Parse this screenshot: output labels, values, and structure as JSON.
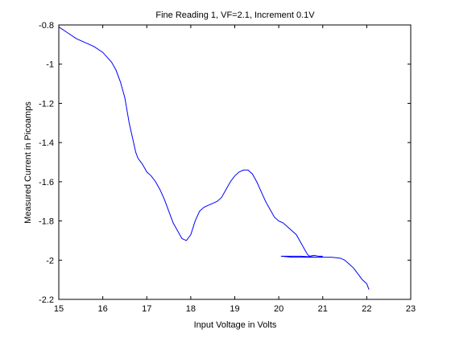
{
  "chart_data": {
    "type": "line",
    "title": "Fine Reading 1, VF=2.1, Increment 0.1V",
    "xlabel": "Input Voltage in Volts",
    "ylabel": "Measured Current in Picoamps",
    "xlim": [
      15,
      23
    ],
    "ylim": [
      -2.2,
      -0.8
    ],
    "xticks": [
      15,
      16,
      17,
      18,
      19,
      20,
      21,
      22,
      23
    ],
    "xtick_labels": [
      "15",
      "16",
      "17",
      "18",
      "19",
      "20",
      "21",
      "22",
      "23"
    ],
    "yticks": [
      -0.8,
      -1,
      -1.2,
      -1.4,
      -1.6,
      -1.8,
      -2,
      -2.2
    ],
    "ytick_labels": [
      "-0.8",
      "-1",
      "-1.2",
      "-1.4",
      "-1.6",
      "-1.8",
      "-2",
      "-2.2"
    ],
    "grid": false,
    "line_color": "#0000ff",
    "series": [
      {
        "x": [
          15.0,
          15.2,
          15.4,
          15.6,
          15.8,
          16.0,
          16.2,
          16.3,
          16.4,
          16.5,
          16.6,
          16.7,
          16.75,
          16.8,
          16.9,
          17.0,
          17.1,
          17.2,
          17.3,
          17.4,
          17.5,
          17.6,
          17.7,
          17.8,
          17.9,
          18.0,
          18.1,
          18.2,
          18.3,
          18.4,
          18.5,
          18.6,
          18.7,
          18.8,
          18.9,
          19.0,
          19.1,
          19.2,
          19.3,
          19.4,
          19.5,
          19.6,
          19.7,
          19.8,
          19.9,
          20.0,
          20.1,
          20.2,
          20.3,
          20.4,
          20.5,
          20.6,
          20.65,
          20.7,
          20.8,
          20.9,
          21.0,
          20.9,
          20.6,
          20.3,
          20.05,
          20.5,
          20.9,
          21.2,
          21.4,
          21.5,
          21.6,
          21.7,
          21.8,
          21.9,
          22.0,
          22.05
        ],
        "y": [
          -0.81,
          -0.84,
          -0.87,
          -0.89,
          -0.91,
          -0.94,
          -0.99,
          -1.03,
          -1.09,
          -1.17,
          -1.3,
          -1.4,
          -1.45,
          -1.48,
          -1.51,
          -1.55,
          -1.57,
          -1.6,
          -1.64,
          -1.69,
          -1.75,
          -1.81,
          -1.85,
          -1.89,
          -1.9,
          -1.87,
          -1.8,
          -1.75,
          -1.73,
          -1.72,
          -1.71,
          -1.7,
          -1.68,
          -1.64,
          -1.6,
          -1.57,
          -1.55,
          -1.54,
          -1.54,
          -1.56,
          -1.6,
          -1.65,
          -1.7,
          -1.74,
          -1.78,
          -1.8,
          -1.81,
          -1.83,
          -1.85,
          -1.87,
          -1.91,
          -1.95,
          -1.97,
          -1.98,
          -1.975,
          -1.98,
          -1.98,
          -1.985,
          -1.985,
          -1.985,
          -1.98,
          -1.98,
          -1.985,
          -1.985,
          -1.99,
          -2.0,
          -2.02,
          -2.04,
          -2.07,
          -2.1,
          -2.12,
          -2.15
        ]
      }
    ]
  }
}
